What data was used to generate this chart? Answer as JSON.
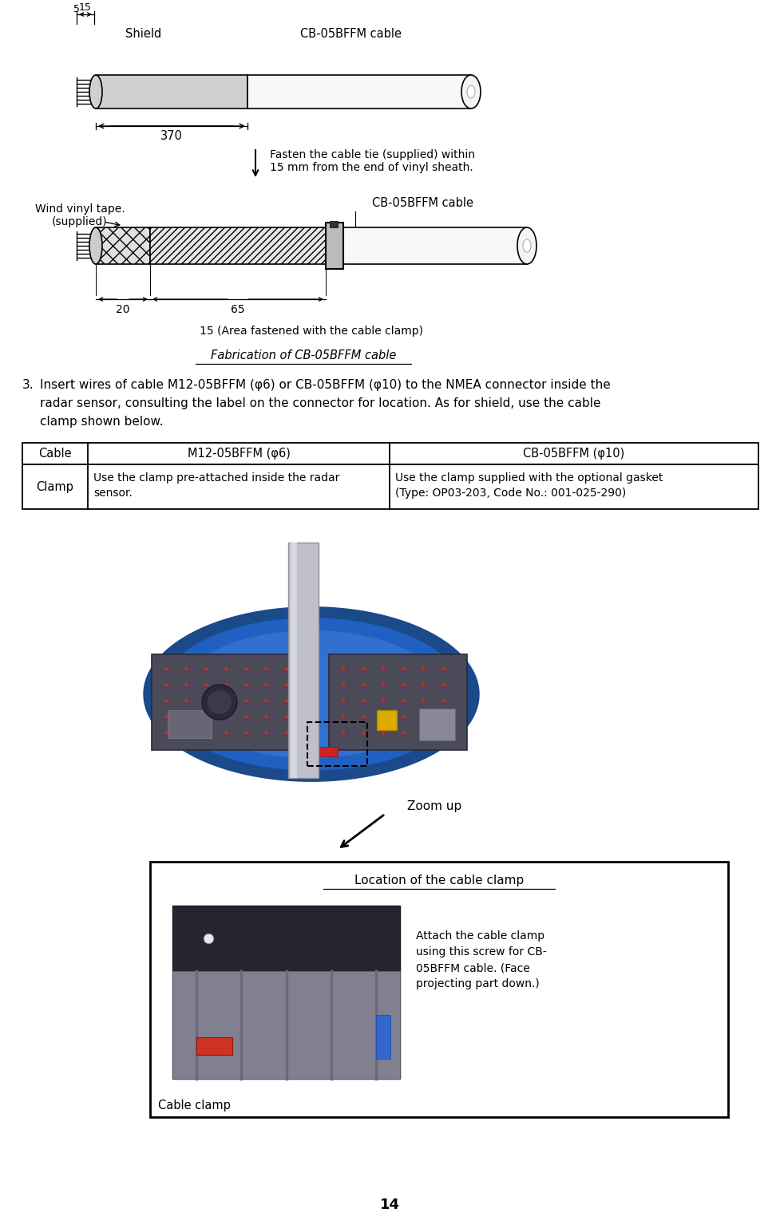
{
  "page_number": "14",
  "bg_color": "#ffffff",
  "figsize": [
    9.77,
    15.29
  ],
  "dpi": 100,
  "top_diagram": {
    "cable_label_top": "CB-05BFFM cable",
    "shield_label": "Shield",
    "dim_5": "5",
    "dim_15": "15",
    "dim_370": "370",
    "fasten_text": "Fasten the cable tie (supplied) within\n15 mm from the end of vinyl sheath.",
    "wind_text": "Wind vinyl tape.\n(supplied)",
    "cable_label_bottom": "CB-05BFFM cable",
    "dim_20": "20",
    "dim_65": "65",
    "dim_15_area": "15 (Area fastened with the cable clamp)",
    "caption": "Fabrication of CB-05BFFM cable"
  },
  "step3_text_line1": "Insert wires of cable M12-05BFFM (φ6) or CB-05BFFM (φ10) to the NMEA connector inside the",
  "step3_text_line2": "radar sensor, consulting the label on the connector for location. As for shield, use the cable",
  "step3_text_line3": "clamp shown below.",
  "table_col0": "Cable",
  "table_col1": "M12-05BFFM (φ6)",
  "table_col2": "CB-05BFFM (φ10)",
  "table_row0_col0": "Clamp",
  "table_row0_col1_line1": "Use the clamp pre-attached inside the radar",
  "table_row0_col1_line2": "sensor.",
  "table_row0_col2_line1": "Use the clamp supplied with the optional gasket",
  "table_row0_col2_line2": "(Type: OP03-203, Code No.: 001-025-290)",
  "zoom_label": "Zoom up",
  "location_label": "Location of the cable clamp",
  "cable_clamp_label": "Cable clamp",
  "attach_text_line1": "Attach the cable clamp",
  "attach_text_line2": "using this screw for CB-",
  "attach_text_line3": "05BFFM cable. (Face",
  "attach_text_line4": "projecting part down.)"
}
